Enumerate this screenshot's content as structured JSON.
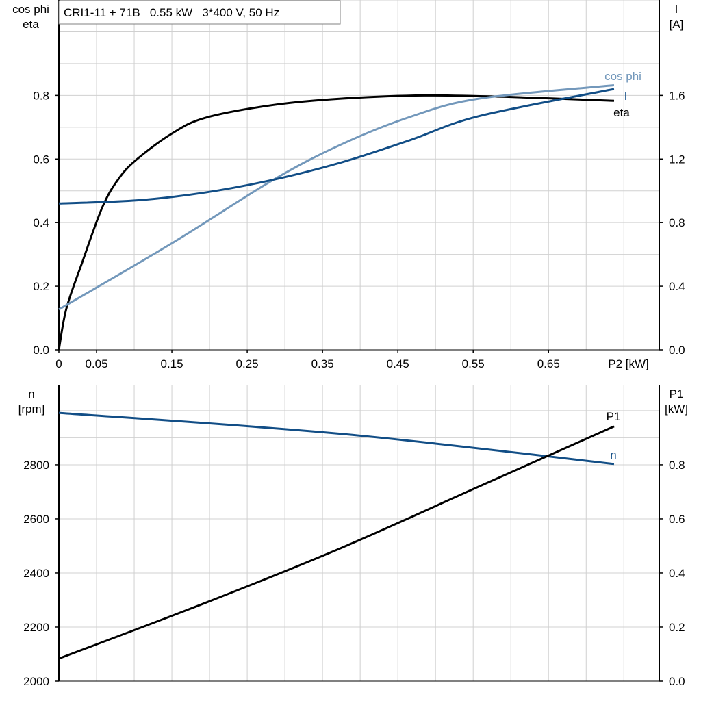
{
  "chart_data": [
    {
      "type": "line",
      "title": "CRI1-11 + 71B   0.55 kW   3*400 V, 50 Hz",
      "xlabel": "P2 [kW]",
      "ylabel_left": [
        "cos phi",
        "eta"
      ],
      "ylabel_right": [
        "I",
        "[A]"
      ],
      "xlim": [
        0,
        0.797
      ],
      "ylim_left": [
        0,
        1.1
      ],
      "ylim_right": [
        0,
        2.2
      ],
      "x_ticks": [
        "0",
        "0.05",
        "0.15",
        "0.25",
        "0.35",
        "0.45",
        "0.55",
        "0.65"
      ],
      "x_tick_values": [
        0,
        0.05,
        0.15,
        0.25,
        0.35,
        0.45,
        0.55,
        0.65
      ],
      "y_ticks_left": [
        "0.0",
        "0.2",
        "0.4",
        "0.6",
        "0.8"
      ],
      "y_ticks_right": [
        "0.0",
        "0.4",
        "0.8",
        "1.2",
        "1.6"
      ],
      "grid": true,
      "series": [
        {
          "name": "eta",
          "axis": "left",
          "color": "#000000",
          "x": [
            0,
            0.01,
            0.031,
            0.058,
            0.08,
            0.104,
            0.15,
            0.195,
            0.285,
            0.376,
            0.485,
            0.6,
            0.737
          ],
          "y": [
            0,
            0.13,
            0.275,
            0.45,
            0.54,
            0.6,
            0.68,
            0.73,
            0.77,
            0.79,
            0.8,
            0.795,
            0.783
          ]
        },
        {
          "name": "cos phi",
          "axis": "left",
          "color": "#7398bb",
          "x": [
            0,
            0.15,
            0.285,
            0.376,
            0.467,
            0.558,
            0.737
          ],
          "y": [
            0.127,
            0.335,
            0.535,
            0.647,
            0.733,
            0.79,
            0.832
          ]
        },
        {
          "name": "I",
          "axis": "right",
          "color": "#124e86",
          "x": [
            0,
            0.104,
            0.195,
            0.285,
            0.376,
            0.467,
            0.558,
            0.737
          ],
          "y": [
            0.92,
            0.94,
            0.99,
            1.07,
            1.18,
            1.32,
            1.47,
            1.64
          ]
        }
      ]
    },
    {
      "type": "line",
      "xlim": [
        0,
        0.797
      ],
      "ylabel_left": [
        "n",
        "[rpm]"
      ],
      "ylabel_right": [
        "P1",
        "[kW]"
      ],
      "ylim_left": [
        2000,
        3096
      ],
      "ylim_right": [
        0,
        1.096
      ],
      "y_ticks_left": [
        "2000",
        "2200",
        "2400",
        "2600",
        "2800"
      ],
      "y_ticks_right": [
        "0.0",
        "0.2",
        "0.4",
        "0.6",
        "0.8"
      ],
      "grid": true,
      "series": [
        {
          "name": "n",
          "axis": "left",
          "color": "#124e86",
          "x": [
            0,
            0.376,
            0.737
          ],
          "y": [
            2992,
            2914,
            2803
          ]
        },
        {
          "name": "P1",
          "axis": "right",
          "color": "#000000",
          "x": [
            0,
            0.195,
            0.376,
            0.558,
            0.737
          ],
          "y": [
            0.0835,
            0.29,
            0.494,
            0.72,
            0.942
          ]
        }
      ]
    }
  ]
}
